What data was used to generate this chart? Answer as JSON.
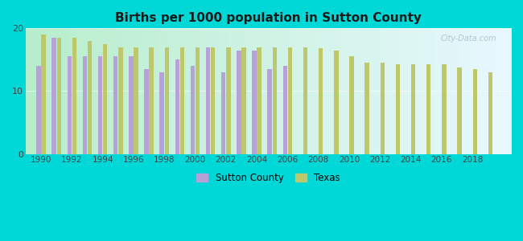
{
  "title": "Births per 1000 population in Sutton County",
  "background_color": "#00d8d8",
  "sutton_color": "#b8a0d8",
  "texas_color": "#bec86a",
  "ylim": [
    0,
    20
  ],
  "yticks": [
    0,
    10,
    20
  ],
  "years": [
    1990,
    1991,
    1992,
    1993,
    1994,
    1995,
    1996,
    1997,
    1998,
    1999,
    2000,
    2001,
    2002,
    2003,
    2004,
    2005,
    2006,
    2007,
    2008,
    2009,
    2010,
    2011,
    2012,
    2013,
    2014,
    2015,
    2016,
    2017,
    2018,
    2019
  ],
  "sutton_values": [
    14.0,
    18.5,
    15.5,
    15.5,
    15.5,
    15.5,
    15.5,
    13.5,
    13.0,
    15.0,
    14.0,
    17.0,
    13.0,
    16.5,
    16.5,
    13.5,
    14.0,
    null,
    null,
    null,
    null,
    null,
    null,
    null,
    null,
    null,
    null,
    null,
    null,
    null
  ],
  "texas_values": [
    19.0,
    18.5,
    18.5,
    18.0,
    17.5,
    17.0,
    17.0,
    17.0,
    17.0,
    17.0,
    17.0,
    17.0,
    17.0,
    17.0,
    17.0,
    17.0,
    17.0,
    17.0,
    16.8,
    16.5,
    15.5,
    14.5,
    14.5,
    14.3,
    14.3,
    14.3,
    14.3,
    13.8,
    13.5,
    13.0
  ],
  "legend_sutton": "Sutton County",
  "legend_texas": "Texas",
  "bar_width": 0.28,
  "xlim_left": 1989.0,
  "xlim_right": 2020.5,
  "xticks": [
    1990,
    1992,
    1994,
    1996,
    1998,
    2000,
    2002,
    2004,
    2006,
    2008,
    2010,
    2012,
    2014,
    2016,
    2018
  ],
  "grad_left": "#b8eecc",
  "grad_right": "#e8f8ff",
  "watermark": "City-Data.com"
}
